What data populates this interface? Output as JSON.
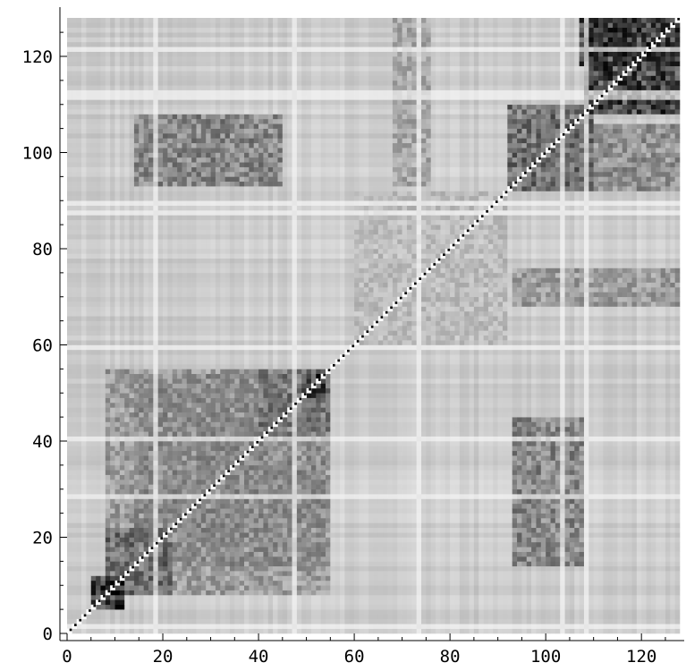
{
  "chart_data": {
    "type": "heatmap",
    "title": "",
    "xlabel": "",
    "ylabel": "",
    "matrix_size": 128,
    "xlim": [
      0,
      128
    ],
    "ylim": [
      0,
      128
    ],
    "x_ticks": [
      0,
      20,
      40,
      60,
      80,
      100,
      120
    ],
    "y_ticks": [
      0,
      20,
      40,
      60,
      80,
      100,
      120
    ],
    "x_tick_labels": [
      "0",
      "20",
      "40",
      "60",
      "80",
      "100",
      "120"
    ],
    "y_tick_labels": [
      "0",
      "20",
      "40",
      "60",
      "80",
      "100",
      "120"
    ],
    "colormap": "grayscale (0 = white, 1 = black)",
    "diagonal": "white checkered main diagonal",
    "grid": false,
    "legend": "none",
    "dense_blocks": [
      {
        "x": [
          5,
          12
        ],
        "y": [
          5,
          12
        ],
        "value": 0.9
      },
      {
        "x": [
          8,
          22
        ],
        "y": [
          8,
          22
        ],
        "value": 0.65
      },
      {
        "x": [
          8,
          55
        ],
        "y": [
          8,
          55
        ],
        "value": 0.45
      },
      {
        "x": [
          14,
          54
        ],
        "y": [
          14,
          54
        ],
        "value": 0.5
      },
      {
        "x": [
          40,
          55
        ],
        "y": [
          40,
          55
        ],
        "value": 0.6
      },
      {
        "x": [
          49,
          54
        ],
        "y": [
          49,
          54
        ],
        "value": 0.9
      },
      {
        "x": [
          92,
          110
        ],
        "y": [
          92,
          110
        ],
        "value": 0.65
      },
      {
        "x": [
          93,
          108
        ],
        "y": [
          14,
          45
        ],
        "value": 0.55
      },
      {
        "x": [
          14,
          45
        ],
        "y": [
          93,
          108
        ],
        "value": 0.55
      },
      {
        "x": [
          108,
          128
        ],
        "y": [
          108,
          128
        ],
        "value": 0.85
      },
      {
        "x": [
          107,
          128
        ],
        "y": [
          118,
          128
        ],
        "value": 0.8
      },
      {
        "x": [
          98,
          128
        ],
        "y": [
          92,
          106
        ],
        "value": 0.5
      },
      {
        "x": [
          60,
          92
        ],
        "y": [
          60,
          92
        ],
        "value": 0.3
      },
      {
        "x": [
          93,
          128
        ],
        "y": [
          68,
          76
        ],
        "value": 0.45
      },
      {
        "x": [
          68,
          76
        ],
        "y": [
          93,
          128
        ],
        "value": 0.4
      }
    ]
  }
}
